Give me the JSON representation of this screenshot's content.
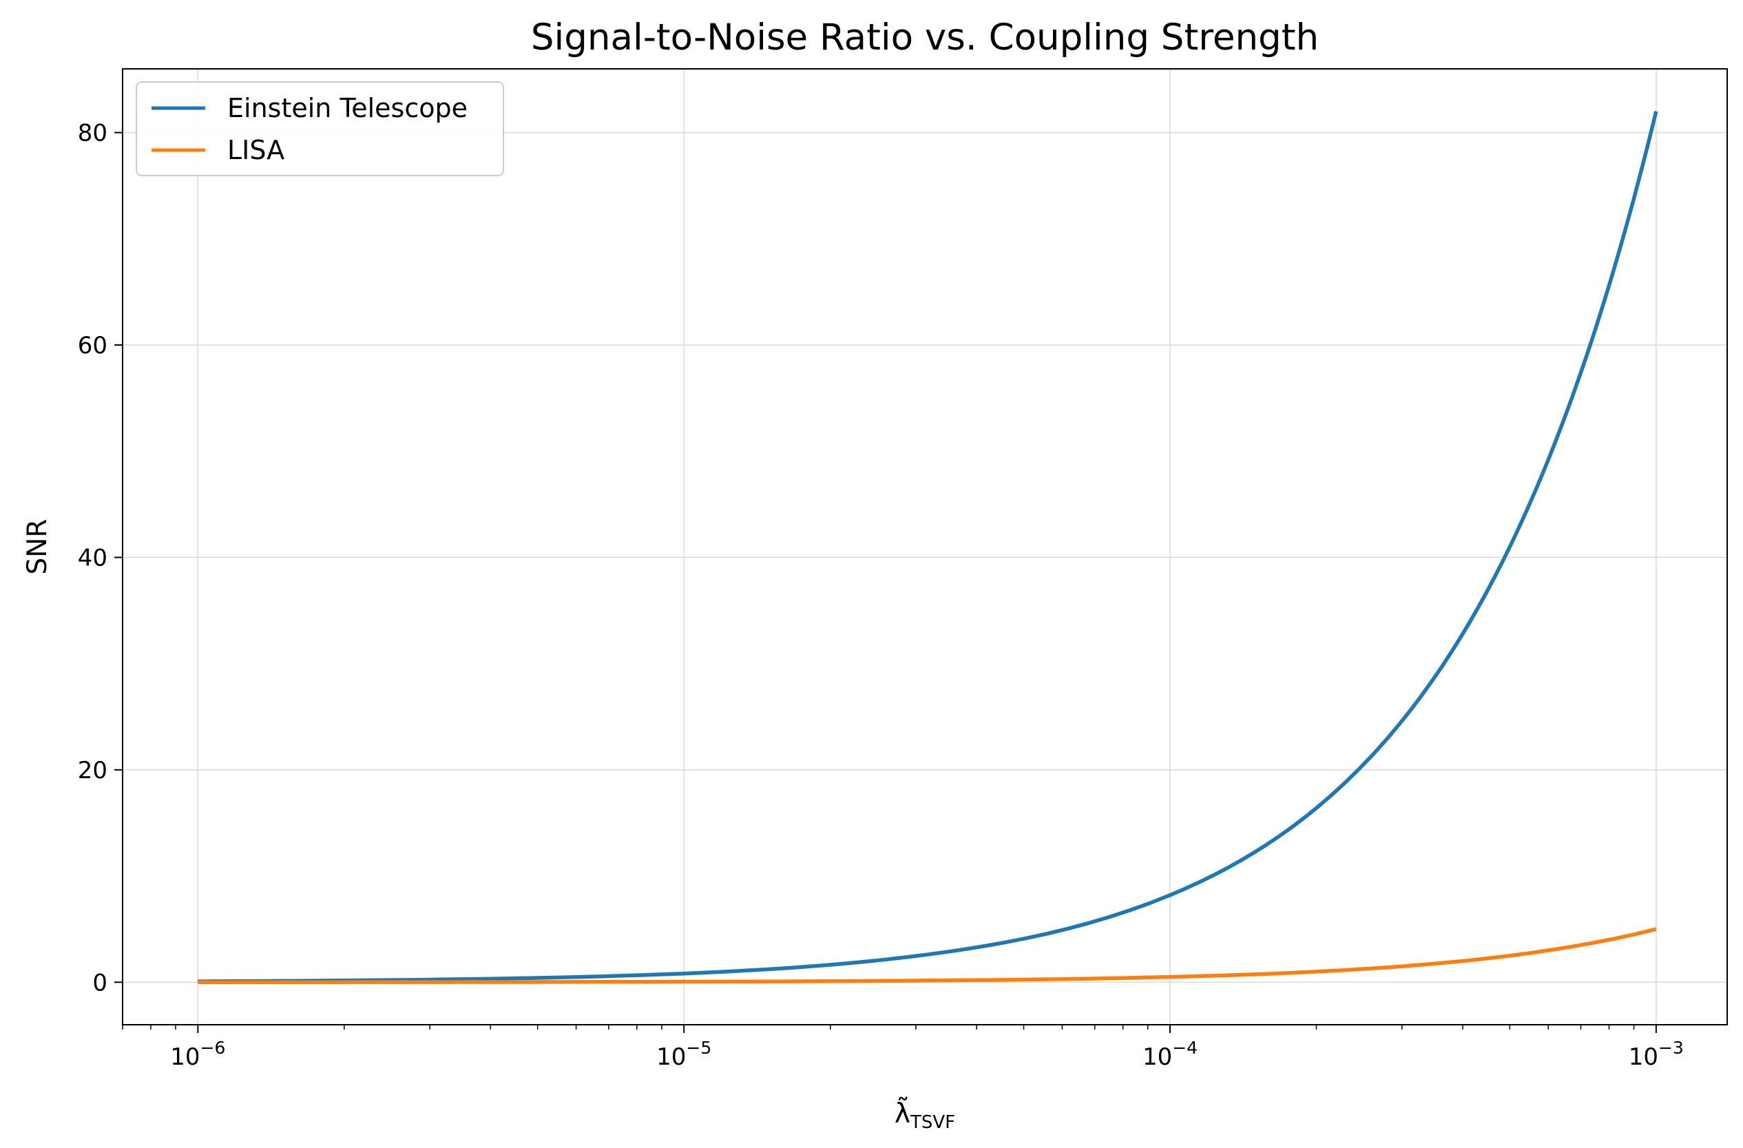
{
  "chart_data": {
    "type": "line",
    "title": "Signal-to-Noise Ratio vs. Coupling Strength",
    "xlabel": "λ̃",
    "xlabel_subscript": "TSVF",
    "ylabel": "SNR",
    "xscale": "log",
    "xlim": [
      7e-07,
      0.0014
    ],
    "ylim": [
      -4,
      86
    ],
    "grid": true,
    "legend_position": "top-left",
    "x_ticks": [
      {
        "value": 1e-06,
        "base": "10",
        "exp": "−6"
      },
      {
        "value": 1e-05,
        "base": "10",
        "exp": "−5"
      },
      {
        "value": 0.0001,
        "base": "10",
        "exp": "−4"
      },
      {
        "value": 0.001,
        "base": "10",
        "exp": "−3"
      }
    ],
    "y_ticks": [
      {
        "value": 0,
        "label": "0"
      },
      {
        "value": 20,
        "label": "20"
      },
      {
        "value": 40,
        "label": "40"
      },
      {
        "value": 60,
        "label": "60"
      },
      {
        "value": 80,
        "label": "80"
      }
    ],
    "x": [
      1e-06,
      1.78e-06,
      3.16e-06,
      5.62e-06,
      1e-05,
      1.78e-05,
      3.16e-05,
      5.62e-05,
      0.0001,
      0.00015,
      0.0002,
      0.0003,
      0.0004,
      0.0005,
      0.0006,
      0.0007,
      0.0008,
      0.0009,
      0.001
    ],
    "series": [
      {
        "name": "Einstein Telescope",
        "color": "#1f77b4",
        "values": [
          0.08,
          0.15,
          0.26,
          0.46,
          0.82,
          1.46,
          2.6,
          4.6,
          8.2,
          12.3,
          16.4,
          24.6,
          32.8,
          41.0,
          49.2,
          57.4,
          65.6,
          73.8,
          82.0
        ]
      },
      {
        "name": "LISA",
        "color": "#ff7f0e",
        "values": [
          0.005,
          0.009,
          0.016,
          0.028,
          0.05,
          0.09,
          0.16,
          0.28,
          0.5,
          0.75,
          1.0,
          1.5,
          2.0,
          2.5,
          3.0,
          3.5,
          4.0,
          4.5,
          5.0
        ]
      }
    ]
  }
}
